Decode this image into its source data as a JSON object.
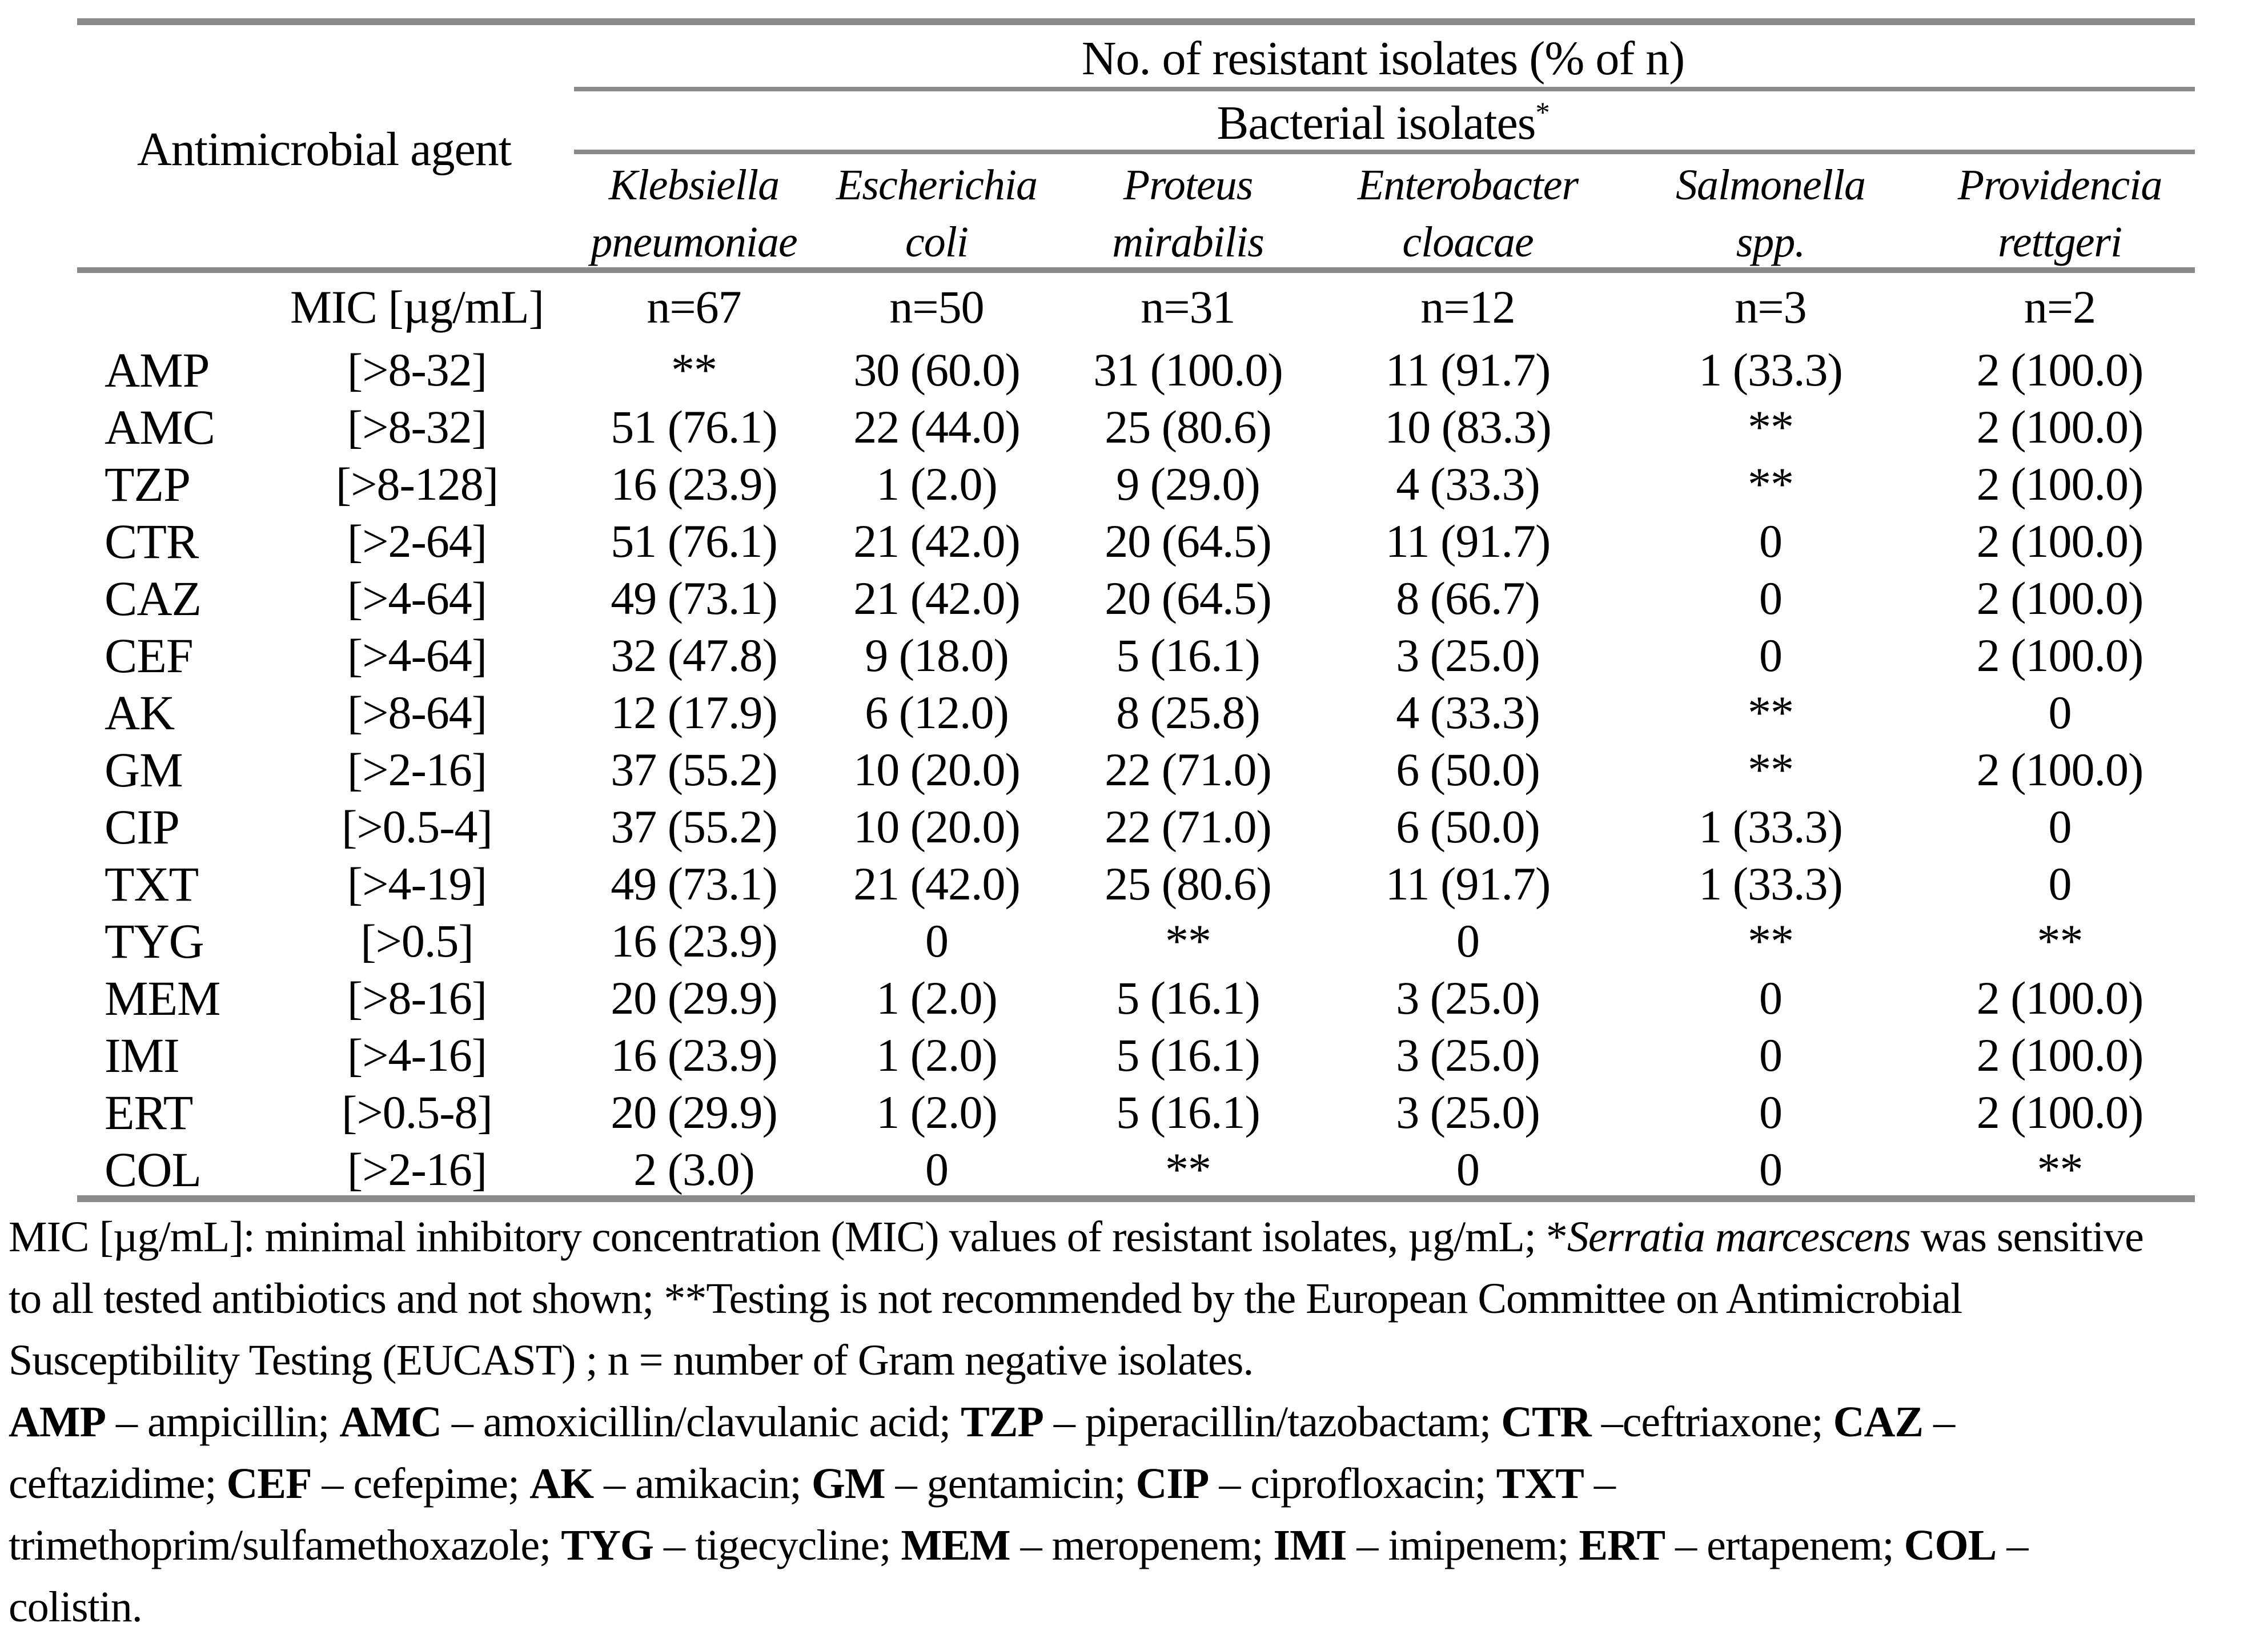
{
  "colors": {
    "background": "#ffffff",
    "text": "#000000",
    "rule": "#8a8a8a"
  },
  "table": {
    "header": {
      "agent_col": "Antimicrobial agent",
      "group_title": "No. of resistant isolates (% of n)",
      "subgroup_title": "Bacterial isolates",
      "subgroup_marker": "*",
      "mic_label": "MIC [µg/mL]",
      "species": [
        {
          "line1": "Klebsiella",
          "line2": "pneumoniae",
          "n": "n=67"
        },
        {
          "line1": "Escherichia",
          "line2": "coli",
          "n": "n=50"
        },
        {
          "line1": "Proteus",
          "line2": "mirabilis",
          "n": "n=31"
        },
        {
          "line1": "Enterobacter",
          "line2": "cloacae",
          "n": "n=12"
        },
        {
          "line1": "Salmonella",
          "line2": "spp.",
          "n": "n=3"
        },
        {
          "line1": "Providencia",
          "line2": "rettgeri",
          "n": "n=2"
        }
      ]
    },
    "rows": [
      {
        "agent": "AMP",
        "mic": "[>8-32]",
        "values": [
          "**",
          "30 (60.0)",
          "31 (100.0)",
          "11 (91.7)",
          "1 (33.3)",
          "2 (100.0)"
        ]
      },
      {
        "agent": "AMC",
        "mic": "[>8-32]",
        "values": [
          "51 (76.1)",
          "22 (44.0)",
          "25 (80.6)",
          "10 (83.3)",
          "**",
          "2 (100.0)"
        ]
      },
      {
        "agent": "TZP",
        "mic": "[>8-128]",
        "values": [
          "16 (23.9)",
          "1 (2.0)",
          "9 (29.0)",
          "4 (33.3)",
          "**",
          "2 (100.0)"
        ]
      },
      {
        "agent": "CTR",
        "mic": "[>2-64]",
        "values": [
          "51 (76.1)",
          "21 (42.0)",
          "20 (64.5)",
          "11 (91.7)",
          "0",
          "2 (100.0)"
        ]
      },
      {
        "agent": "CAZ",
        "mic": "[>4-64]",
        "values": [
          "49 (73.1)",
          "21 (42.0)",
          "20 (64.5)",
          "8 (66.7)",
          "0",
          "2 (100.0)"
        ]
      },
      {
        "agent": "CEF",
        "mic": "[>4-64]",
        "values": [
          "32 (47.8)",
          "9 (18.0)",
          "5 (16.1)",
          "3 (25.0)",
          "0",
          "2 (100.0)"
        ]
      },
      {
        "agent": "AK",
        "mic": "[>8-64]",
        "values": [
          "12 (17.9)",
          "6 (12.0)",
          "8 (25.8)",
          "4 (33.3)",
          "**",
          "0"
        ]
      },
      {
        "agent": "GM",
        "mic": "[>2-16]",
        "values": [
          "37 (55.2)",
          "10 (20.0)",
          "22 (71.0)",
          "6 (50.0)",
          "**",
          "2 (100.0)"
        ]
      },
      {
        "agent": "CIP",
        "mic": "[>0.5-4]",
        "values": [
          "37 (55.2)",
          "10 (20.0)",
          "22 (71.0)",
          "6 (50.0)",
          "1 (33.3)",
          "0"
        ]
      },
      {
        "agent": "TXT",
        "mic": "[>4-19]",
        "values": [
          "49 (73.1)",
          "21 (42.0)",
          "25 (80.6)",
          "11 (91.7)",
          "1 (33.3)",
          "0"
        ]
      },
      {
        "agent": "TYG",
        "mic": "[>0.5]",
        "values": [
          "16 (23.9)",
          "0",
          "**",
          "0",
          "**",
          "**"
        ]
      },
      {
        "agent": "MEM",
        "mic": "[>8-16]",
        "values": [
          "20 (29.9)",
          "1 (2.0)",
          "5 (16.1)",
          "3 (25.0)",
          "0",
          "2 (100.0)"
        ]
      },
      {
        "agent": "IMI",
        "mic": "[>4-16]",
        "values": [
          "16 (23.9)",
          "1 (2.0)",
          "5 (16.1)",
          "3 (25.0)",
          "0",
          "2 (100.0)"
        ]
      },
      {
        "agent": "ERT",
        "mic": "[>0.5-8]",
        "values": [
          "20 (29.9)",
          "1 (2.0)",
          "5 (16.1)",
          "3 (25.0)",
          "0",
          "2 (100.0)"
        ]
      },
      {
        "agent": "COL",
        "mic": "[>2-16]",
        "values": [
          "2 (3.0)",
          "0",
          "**",
          "0",
          "0",
          "**"
        ]
      }
    ]
  },
  "footnotes": {
    "lines": [
      [
        {
          "t": "MIC [µg/mL]:  minimal inhibitory concentration (MIC) values of resistant isolates, µg/mL; *"
        },
        {
          "t": "Serratia marcescens",
          "i": true
        },
        {
          "t": " was sensitive"
        }
      ],
      [
        {
          "t": "to all tested antibiotics and not shown; **Testing is not recommended by the European Committee on Antimicrobial"
        }
      ],
      [
        {
          "t": "Susceptibility Testing (EUCAST) ; n = number of Gram negative isolates."
        }
      ],
      [
        {
          "t": "AMP",
          "b": true
        },
        {
          "t": " – ampicillin; "
        },
        {
          "t": "AMC",
          "b": true
        },
        {
          "t": " – amoxicillin/clavulanic acid; "
        },
        {
          "t": "TZP",
          "b": true
        },
        {
          "t": " – piperacillin/tazobactam; "
        },
        {
          "t": "CTR",
          "b": true
        },
        {
          "t": " –ceftriaxone; "
        },
        {
          "t": "CAZ",
          "b": true
        },
        {
          "t": " –"
        }
      ],
      [
        {
          "t": "ceftazidime; "
        },
        {
          "t": "CEF",
          "b": true
        },
        {
          "t": " – cefepime; "
        },
        {
          "t": "AK",
          "b": true
        },
        {
          "t": " – amikacin; "
        },
        {
          "t": "GM",
          "b": true
        },
        {
          "t": " – gentamicin; "
        },
        {
          "t": "CIP",
          "b": true
        },
        {
          "t": " – ciprofloxacin; "
        },
        {
          "t": "TXT",
          "b": true
        },
        {
          "t": " –"
        }
      ],
      [
        {
          "t": "trimethoprim/sulfamethoxazole; "
        },
        {
          "t": "TYG",
          "b": true
        },
        {
          "t": " – tigecycline; "
        },
        {
          "t": "MEM",
          "b": true
        },
        {
          "t": " – meropenem; "
        },
        {
          "t": "IMI",
          "b": true
        },
        {
          "t": " – imipenem; "
        },
        {
          "t": "ERT",
          "b": true
        },
        {
          "t": " – ertapenem; "
        },
        {
          "t": "COL",
          "b": true
        },
        {
          "t": " –"
        }
      ],
      [
        {
          "t": "colistin."
        }
      ]
    ]
  }
}
